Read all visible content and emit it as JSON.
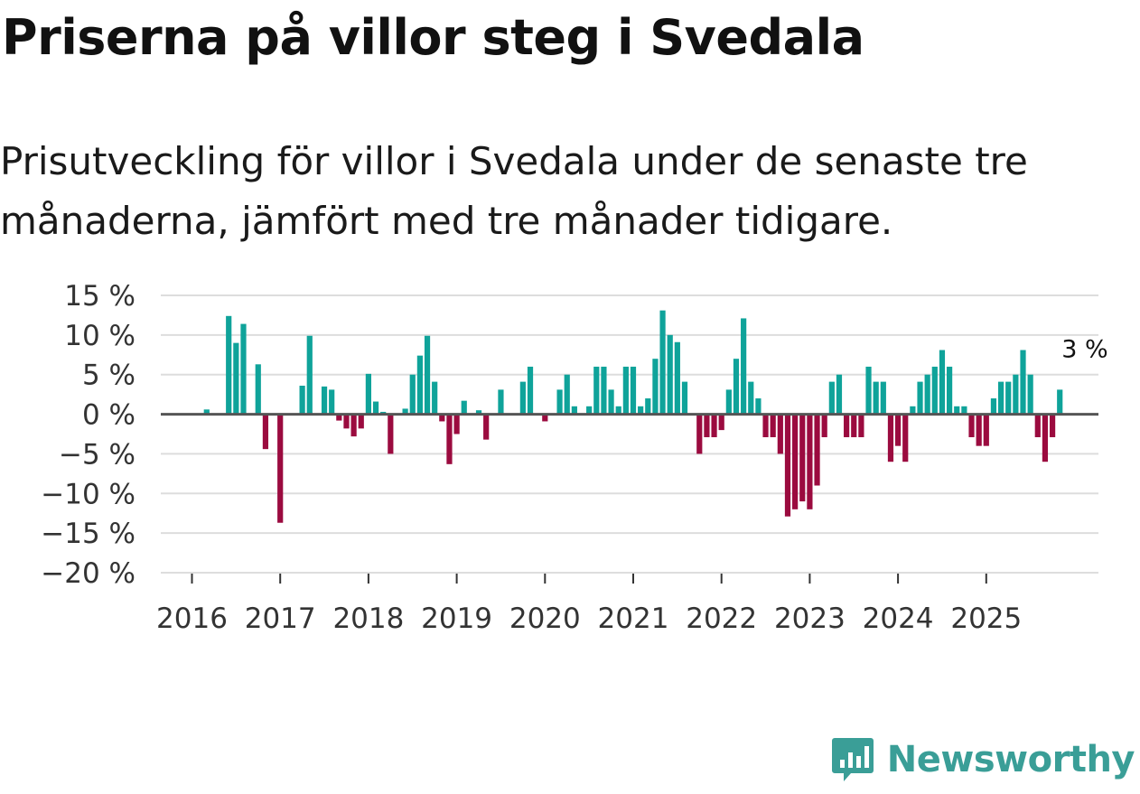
{
  "header": {
    "title": "Priserna på villor steg i Svedala",
    "subtitle": "Prisutveckling för villor i Svedala under de senaste tre månaderna, jämfört med tre månader tidigare."
  },
  "brand": {
    "name": "Newsworthy",
    "icon": "newsworthy-logo-icon",
    "color": "#3a9e97"
  },
  "colors": {
    "positive": "#0fa39a",
    "negative": "#9b0b3f",
    "zero_line": "#555555",
    "grid": "#dddddd"
  },
  "chart_data": {
    "type": "bar",
    "title": "Priserna på villor steg i Svedala",
    "xlabel": "",
    "ylabel": "",
    "ylim": [
      -20,
      15
    ],
    "y_ticks": [
      15,
      10,
      5,
      0,
      -5,
      -10,
      -15,
      -20
    ],
    "y_tick_labels": [
      "15 %",
      "10 %",
      "5 %",
      "0 %",
      "−5 %",
      "−10 %",
      "−15 %",
      "−20 %"
    ],
    "x_tick_labels": [
      "2016",
      "2017",
      "2018",
      "2019",
      "2020",
      "2021",
      "2022",
      "2023",
      "2024",
      "2025"
    ],
    "start": "2016-01",
    "end_label": "3 %",
    "series": [
      {
        "name": "Prisutveckling (%)",
        "values": [
          null,
          null,
          0.6,
          null,
          null,
          12.4,
          9,
          11.4,
          null,
          6.3,
          -4.4,
          null,
          -13.7,
          null,
          null,
          3.6,
          9.9,
          null,
          3.5,
          3.1,
          -0.8,
          -1.8,
          -2.8,
          -1.8,
          5.1,
          1.6,
          0.3,
          -5,
          null,
          0.7,
          5,
          7.4,
          9.9,
          4.1,
          -0.9,
          -6.3,
          -2.5,
          1.7,
          null,
          0.5,
          -3.2,
          null,
          3.1,
          null,
          null,
          4.1,
          6,
          null,
          -0.9,
          null,
          3.1,
          5,
          1,
          null,
          1,
          6,
          6,
          3.1,
          1,
          6,
          6,
          1,
          2,
          7,
          13.1,
          10,
          9.1,
          4.1,
          null,
          -5,
          -2.9,
          -2.9,
          -2,
          3.1,
          7,
          12.1,
          4.1,
          2,
          -2.9,
          -2.9,
          -5,
          -12.9,
          -12,
          -11,
          -12,
          -9,
          -2.9,
          4.1,
          5,
          -2.9,
          -2.9,
          -2.9,
          6,
          4.1,
          4.1,
          -6,
          -4,
          -6,
          1,
          4.1,
          5,
          6,
          8.1,
          6,
          1,
          1,
          -2.9,
          -4,
          -4,
          2,
          4.1,
          4.1,
          5,
          8.1,
          5,
          -2.9,
          -6,
          -2.9,
          3.1
        ]
      }
    ]
  }
}
